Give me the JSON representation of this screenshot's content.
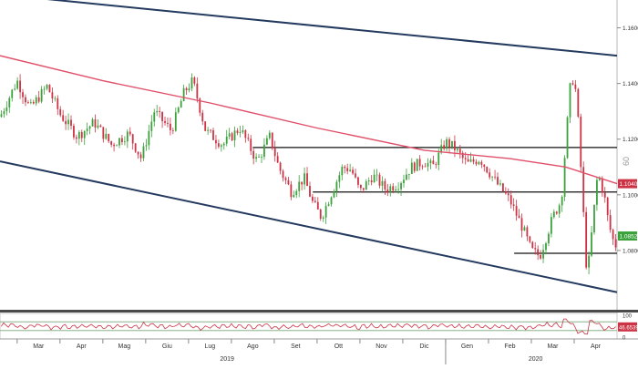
{
  "chart_data": [
    {
      "type": "candlestick",
      "title": "",
      "xlabel": "",
      "ylabel": "",
      "ylim": [
        1.06,
        1.17
      ],
      "x_tick_labels": [
        "Mar",
        "Apr",
        "Mag",
        "Giu",
        "Lug",
        "Ago",
        "Set",
        "Ott",
        "Nov",
        "Dic",
        "Gen",
        "Feb",
        "Mar",
        "Apr"
      ],
      "x_tick_positions": [
        1.5,
        2.5,
        3.5,
        4.5,
        5.5,
        6.5,
        7.5,
        8.5,
        9.5,
        10.5,
        11.5,
        12.5,
        13.5,
        14.5
      ],
      "x_range": [
        0.6,
        15.0
      ],
      "year_labels": [
        {
          "label": "2019",
          "month": 5.9
        },
        {
          "label": "2020",
          "month": 13.1
        }
      ],
      "y_tick_labels": [
        "1.1600",
        "1.1400",
        "1.1200",
        "1.1000",
        "1.0800"
      ],
      "y_tick_values": [
        1.16,
        1.14,
        1.12,
        1.1,
        1.08
      ],
      "price_path": [
        [
          0.6,
          1.128
        ],
        [
          1.0,
          1.141
        ],
        [
          1.3,
          1.131
        ],
        [
          1.7,
          1.139
        ],
        [
          2.0,
          1.129
        ],
        [
          2.4,
          1.121
        ],
        [
          2.8,
          1.126
        ],
        [
          3.2,
          1.118
        ],
        [
          3.6,
          1.122
        ],
        [
          3.9,
          1.113
        ],
        [
          4.2,
          1.13
        ],
        [
          4.6,
          1.123
        ],
        [
          4.9,
          1.137
        ],
        [
          5.1,
          1.141
        ],
        [
          5.4,
          1.123
        ],
        [
          5.8,
          1.118
        ],
        [
          6.2,
          1.124
        ],
        [
          6.6,
          1.112
        ],
        [
          6.9,
          1.121
        ],
        [
          7.1,
          1.11
        ],
        [
          7.4,
          1.101
        ],
        [
          7.7,
          1.106
        ],
        [
          7.9,
          1.097
        ],
        [
          8.1,
          1.092
        ],
        [
          8.4,
          1.103
        ],
        [
          8.6,
          1.11
        ],
        [
          8.8,
          1.109
        ],
        [
          9.0,
          1.101
        ],
        [
          9.3,
          1.107
        ],
        [
          9.6,
          1.102
        ],
        [
          9.9,
          1.104
        ],
        [
          10.2,
          1.11
        ],
        [
          10.5,
          1.112
        ],
        [
          10.7,
          1.11
        ],
        [
          11.0,
          1.119
        ],
        [
          11.2,
          1.117
        ],
        [
          11.5,
          1.111
        ],
        [
          11.8,
          1.113
        ],
        [
          12.2,
          1.104
        ],
        [
          12.5,
          1.098
        ],
        [
          12.8,
          1.088
        ],
        [
          13.0,
          1.08
        ],
        [
          13.2,
          1.078
        ],
        [
          13.5,
          1.092
        ],
        [
          13.7,
          1.098
        ],
        [
          13.8,
          1.118
        ],
        [
          13.9,
          1.138
        ],
        [
          14.0,
          1.143
        ],
        [
          14.1,
          1.125
        ],
        [
          14.3,
          1.07
        ],
        [
          14.4,
          1.085
        ],
        [
          14.55,
          1.108
        ],
        [
          14.7,
          1.1
        ],
        [
          14.8,
          1.09
        ],
        [
          14.9,
          1.084
        ],
        [
          15.0,
          1.081
        ]
      ],
      "series": [
        {
          "name": "",
          "color": "#e0506a",
          "line_path": [
            [
              0.6,
              1.15
            ],
            [
              3.0,
              1.141
            ],
            [
              5.5,
              1.133
            ],
            [
              8.0,
              1.124
            ],
            [
              10.5,
              1.116
            ],
            [
              12.5,
              1.113
            ],
            [
              13.8,
              1.11
            ],
            [
              15.0,
              1.104
            ]
          ]
        }
      ],
      "trendlines": [
        {
          "color": "#243a5e",
          "points": [
            [
              0.6,
              1.172
            ],
            [
              15.0,
              1.15
            ]
          ]
        },
        {
          "color": "#243a5e",
          "points": [
            [
              0.6,
              1.112
            ],
            [
              15.0,
              1.065
            ]
          ]
        }
      ],
      "levels": [
        {
          "value": 1.117,
          "x_start": 6.5,
          "x_end": 15.0
        },
        {
          "value": 1.101,
          "x_start": 7.9,
          "x_end": 15.0
        },
        {
          "value": 1.079,
          "x_start": 12.6,
          "x_end": 15.0
        }
      ],
      "price_labels": [
        {
          "text": "1.1040",
          "value": 1.104,
          "color": "#cc3344"
        },
        {
          "text": "1.0852",
          "value": 1.0852,
          "color": "#3ba23b"
        }
      ],
      "side_note": "60",
      "up_color": "#3ba23b",
      "down_color": "#cc3344"
    },
    {
      "type": "line",
      "title": "",
      "xlabel": "",
      "ylabel": "",
      "ylim": [
        0,
        100
      ],
      "y_tick_labels": [
        "100",
        "0"
      ],
      "y_tick_values": [
        100,
        0
      ],
      "bands": [
        70,
        30
      ],
      "series": [
        {
          "name": "",
          "color": "#cc3344"
        }
      ],
      "last_label": {
        "text": "46.6539",
        "value": 46.6539,
        "color": "#cc3344"
      }
    }
  ]
}
